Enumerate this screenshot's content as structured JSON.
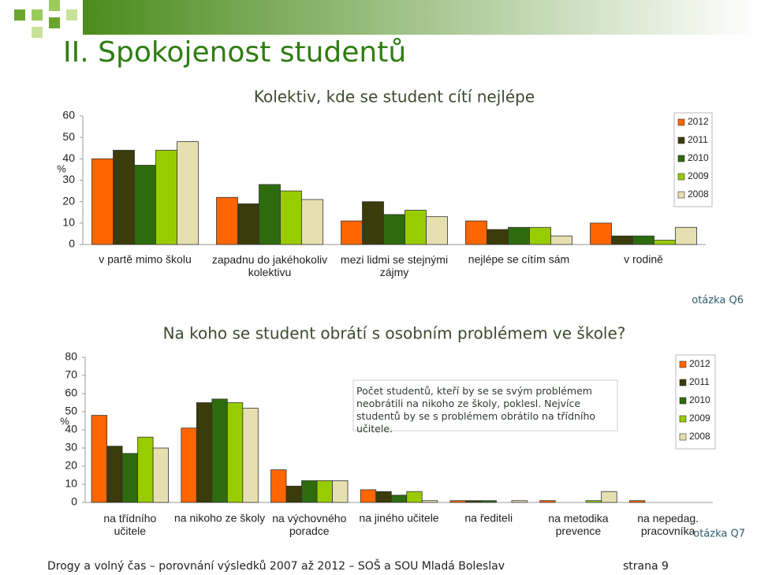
{
  "header": {
    "title": "II. Spokojenost studentů"
  },
  "chart_data": [
    {
      "type": "bar",
      "title": "Kolektiv, kde se student cítí nejlépe",
      "y_label": "%",
      "categories": [
        "v partě mimo školu",
        "zapadnu do jakéhokoliv\nkolektivu",
        "mezi lidmi se stejnými\nzájmy",
        "nejlépe se cítím sám",
        "v rodině"
      ],
      "series": [
        {
          "name": "2012",
          "color": "#ff6600",
          "values": [
            40,
            22,
            11,
            11,
            10
          ]
        },
        {
          "name": "2011",
          "color": "#3b3b0b",
          "values": [
            44,
            19,
            20,
            7,
            4
          ]
        },
        {
          "name": "2010",
          "color": "#2e6b0e",
          "values": [
            37,
            28,
            14,
            8,
            4
          ]
        },
        {
          "name": "2009",
          "color": "#99cc00",
          "values": [
            44,
            25,
            16,
            8,
            2
          ]
        },
        {
          "name": "2008",
          "color": "#e6e0b0",
          "values": [
            48,
            21,
            13,
            4,
            8
          ]
        }
      ],
      "ylim": [
        0,
        60
      ],
      "yticks": [
        0,
        10,
        20,
        30,
        40,
        50,
        60
      ],
      "legend": "upper right",
      "annotation": "otázka Q6"
    },
    {
      "type": "bar",
      "title": "Na koho se student obrátí s osobním problémem ve škole?",
      "y_label": "%",
      "categories": [
        "na třídního\nučitele",
        "na nikoho ze školy",
        "na výchovného\nporadce",
        "na jiného učitele",
        "na řediteli",
        "na metodika\nprevence",
        "na nepedag.\npracovníka"
      ],
      "series": [
        {
          "name": "2012",
          "color": "#ff6600",
          "values": [
            48,
            41,
            18,
            7,
            1,
            1,
            1
          ]
        },
        {
          "name": "2011",
          "color": "#3b3b0b",
          "values": [
            31,
            55,
            9,
            6,
            1,
            0,
            0
          ]
        },
        {
          "name": "2010",
          "color": "#2e6b0e",
          "values": [
            27,
            57,
            12,
            4,
            1,
            0,
            0
          ]
        },
        {
          "name": "2009",
          "color": "#99cc00",
          "values": [
            36,
            55,
            12,
            6,
            0,
            1,
            0
          ]
        },
        {
          "name": "2008",
          "color": "#e6e0b0",
          "values": [
            30,
            52,
            12,
            1,
            1,
            6,
            0
          ]
        }
      ],
      "ylim": [
        0,
        80
      ],
      "yticks": [
        0,
        10,
        20,
        30,
        40,
        50,
        60,
        70,
        80
      ],
      "legend": "upper right",
      "note": "Počet studentů, kteří by se se svým problémem\nneobrátili na nikoho ze školy, poklesl. Nejvíce\nstudentů by se s problémem obrátilo na třídního\nučitele.",
      "annotation": "otázka Q7"
    }
  ],
  "footer": {
    "left": "Drogy a volný čas – porovnání výsledků 2007 až 2012 – SOŠ a SOU Mladá Boleslav",
    "right": "strana 9"
  }
}
